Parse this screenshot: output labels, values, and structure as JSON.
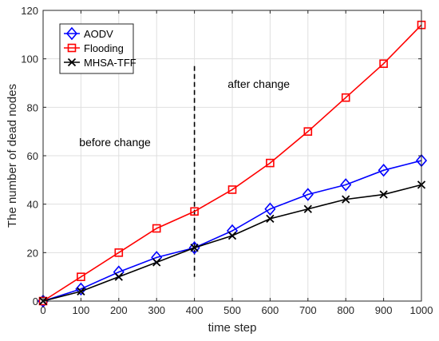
{
  "chart_data": {
    "type": "line",
    "title": "",
    "xlabel": "time step",
    "ylabel": "The number of dead nodes",
    "xlim": [
      0,
      1000
    ],
    "ylim": [
      0,
      120
    ],
    "xticks": [
      0,
      100,
      200,
      300,
      400,
      500,
      600,
      700,
      800,
      900,
      1000
    ],
    "yticks": [
      0,
      20,
      40,
      60,
      80,
      100,
      120
    ],
    "grid": true,
    "legend_position": "top-left",
    "x": [
      0,
      100,
      200,
      300,
      400,
      500,
      600,
      700,
      800,
      900,
      1000
    ],
    "series": [
      {
        "name": "AODV",
        "color": "#0000ff",
        "marker": "diamond",
        "values": [
          0,
          5,
          12,
          18,
          22,
          29,
          38,
          44,
          48,
          54,
          58
        ]
      },
      {
        "name": "Flooding",
        "color": "#ff0000",
        "marker": "square",
        "values": [
          0,
          10,
          20,
          30,
          37,
          46,
          57,
          70,
          84,
          98,
          114
        ]
      },
      {
        "name": "MHSA-TFF",
        "color": "#000000",
        "marker": "x",
        "values": [
          0,
          4,
          10,
          16,
          22,
          27,
          34,
          38,
          42,
          44,
          48
        ]
      }
    ],
    "vline": {
      "x": 400,
      "y_from": 10,
      "y_to": 97,
      "style": "dashed"
    },
    "annotations": [
      {
        "text": "after change",
        "x": 570,
        "y": 88
      },
      {
        "text": "before change",
        "x": 190,
        "y": 64
      }
    ]
  }
}
